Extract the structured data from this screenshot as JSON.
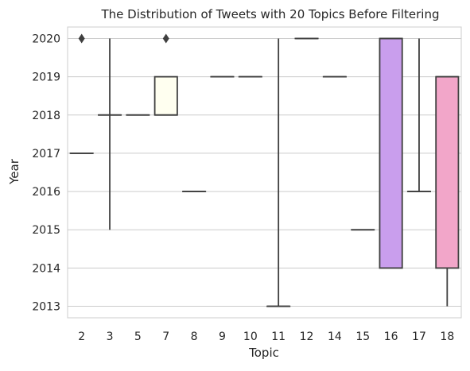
{
  "chart_data": {
    "type": "box",
    "title": "The Distribution of Tweets with 20 Topics Before Filtering",
    "xlabel": "Topic",
    "ylabel": "Year",
    "categories": [
      "2",
      "3",
      "5",
      "7",
      "8",
      "9",
      "10",
      "11",
      "12",
      "14",
      "15",
      "16",
      "17",
      "18"
    ],
    "ylim": [
      2012.7,
      2020.3
    ],
    "yticks": [
      2013,
      2014,
      2015,
      2016,
      2017,
      2018,
      2019,
      2020
    ],
    "grid": "horizontal",
    "boxes": [
      {
        "topic": "2",
        "whisker_low": 2017,
        "q1": 2017,
        "median": 2017,
        "q3": 2017,
        "whisker_high": 2017,
        "outliers": [
          2020
        ],
        "color": "#ffffff"
      },
      {
        "topic": "3",
        "whisker_low": 2015,
        "q1": 2018,
        "median": 2018,
        "q3": 2018,
        "whisker_high": 2020,
        "outliers": [],
        "color": "#ffffff"
      },
      {
        "topic": "5",
        "whisker_low": 2018,
        "q1": 2018,
        "median": 2018,
        "q3": 2018,
        "whisker_high": 2018,
        "outliers": [],
        "color": "#ffffff"
      },
      {
        "topic": "7",
        "whisker_low": 2018,
        "q1": 2018,
        "median": 2018,
        "q3": 2019,
        "whisker_high": 2019,
        "outliers": [
          2020
        ],
        "color": "#fffff0"
      },
      {
        "topic": "8",
        "whisker_low": 2016,
        "q1": 2016,
        "median": 2016,
        "q3": 2016,
        "whisker_high": 2016,
        "outliers": [],
        "color": "#ffffff"
      },
      {
        "topic": "9",
        "whisker_low": 2019,
        "q1": 2019,
        "median": 2019,
        "q3": 2019,
        "whisker_high": 2019,
        "outliers": [],
        "color": "#ffffff"
      },
      {
        "topic": "10",
        "whisker_low": 2019,
        "q1": 2019,
        "median": 2019,
        "q3": 2019,
        "whisker_high": 2019,
        "outliers": [],
        "color": "#ffffff"
      },
      {
        "topic": "11",
        "whisker_low": 2013,
        "q1": 2013,
        "median": 2013,
        "q3": 2013,
        "whisker_high": 2020,
        "outliers": [],
        "color": "#ffffff"
      },
      {
        "topic": "12",
        "whisker_low": 2020,
        "q1": 2020,
        "median": 2020,
        "q3": 2020,
        "whisker_high": 2020,
        "outliers": [],
        "color": "#ffffff"
      },
      {
        "topic": "14",
        "whisker_low": 2019,
        "q1": 2019,
        "median": 2019,
        "q3": 2019,
        "whisker_high": 2019,
        "outliers": [],
        "color": "#ffffff"
      },
      {
        "topic": "15",
        "whisker_low": 2015,
        "q1": 2015,
        "median": 2015,
        "q3": 2015,
        "whisker_high": 2015,
        "outliers": [],
        "color": "#ffffff"
      },
      {
        "topic": "16",
        "whisker_low": 2014,
        "q1": 2014,
        "median": 2020,
        "q3": 2020,
        "whisker_high": 2020,
        "outliers": [],
        "color": "#c99eed"
      },
      {
        "topic": "17",
        "whisker_low": 2016,
        "q1": 2016,
        "median": 2016,
        "q3": 2016,
        "whisker_high": 2020,
        "outliers": [],
        "color": "#ffffff"
      },
      {
        "topic": "18",
        "whisker_low": 2013,
        "q1": 2014,
        "median": 2019,
        "q3": 2019,
        "whisker_high": 2019,
        "outliers": [],
        "color": "#f2a6c9"
      }
    ],
    "colors": {
      "line": "#3f3f3f",
      "grid": "#cccccc",
      "frame": "#cccccc"
    }
  }
}
